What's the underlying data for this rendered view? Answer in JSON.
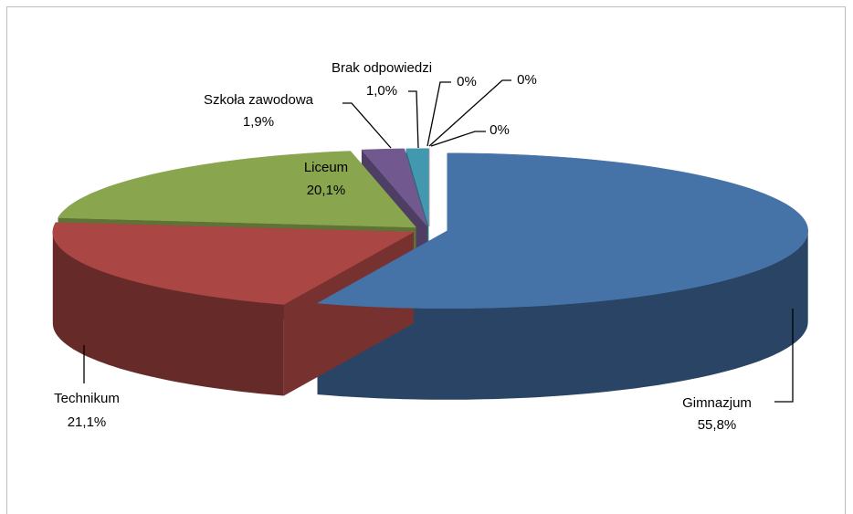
{
  "chart_data": {
    "type": "pie",
    "categories": [
      "Gimnazjum",
      "Technikum",
      "Liceum",
      "Szkoła zawodowa",
      "Brak odpowiedzi",
      null,
      null,
      null
    ],
    "values": [
      55.8,
      21.1,
      20.1,
      1.9,
      1.0,
      0,
      0,
      0
    ],
    "value_labels": [
      "55,8%",
      "21,1%",
      "20,1%",
      "1,9%",
      "1,0%",
      "0%",
      "0%",
      "0%"
    ],
    "colors": [
      "#4572a7",
      "#aa4643",
      "#89a54e",
      "#71588f",
      "#4198af",
      "#db843d",
      "#93a9cf",
      "#d19392"
    ]
  }
}
